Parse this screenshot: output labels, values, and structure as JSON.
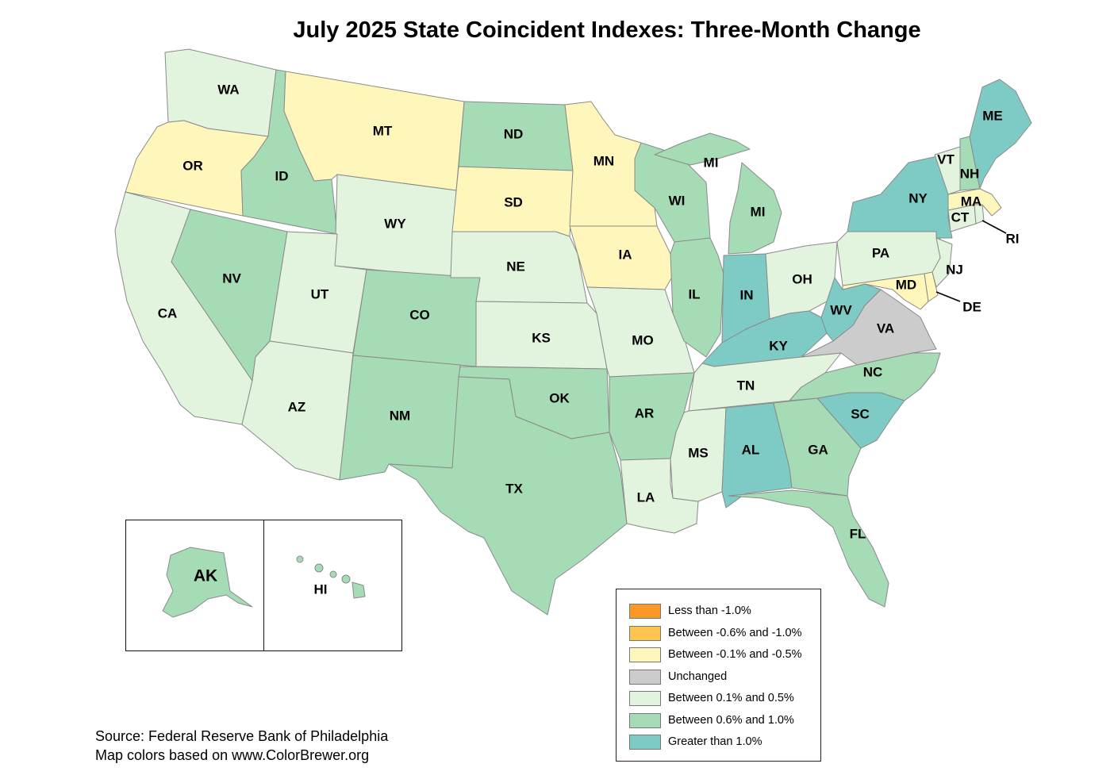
{
  "title": "July 2025 State Coincident Indexes: Three-Month Change",
  "source": {
    "line1": "Source: Federal Reserve Bank of Philadelphia",
    "line2": "Map colors based on www.ColorBrewer.org"
  },
  "legend": [
    {
      "label": "Less than -1.0%",
      "color": "#fc9828"
    },
    {
      "label": "Between -0.6% and -1.0%",
      "color": "#fdc44e"
    },
    {
      "label": "Between -0.1% and -0.5%",
      "color": "#fff6bb"
    },
    {
      "label": "Unchanged",
      "color": "#cccccc"
    },
    {
      "label": "Between 0.1% and 0.5%",
      "color": "#e2f3de"
    },
    {
      "label": "Between 0.6% and 1.0%",
      "color": "#a6dcb5"
    },
    {
      "label": "Greater than 1.0%",
      "color": "#7ecbc5"
    }
  ],
  "states": {
    "WA": {
      "label": "WA",
      "category": 4
    },
    "OR": {
      "label": "OR",
      "category": 2
    },
    "CA": {
      "label": "CA",
      "category": 4
    },
    "ID": {
      "label": "ID",
      "category": 5
    },
    "NV": {
      "label": "NV",
      "category": 5
    },
    "MT": {
      "label": "MT",
      "category": 2
    },
    "WY": {
      "label": "WY",
      "category": 4
    },
    "UT": {
      "label": "UT",
      "category": 4
    },
    "AZ": {
      "label": "AZ",
      "category": 4
    },
    "CO": {
      "label": "CO",
      "category": 5
    },
    "NM": {
      "label": "NM",
      "category": 5
    },
    "ND": {
      "label": "ND",
      "category": 5
    },
    "SD": {
      "label": "SD",
      "category": 2
    },
    "NE": {
      "label": "NE",
      "category": 4
    },
    "KS": {
      "label": "KS",
      "category": 4
    },
    "OK": {
      "label": "OK",
      "category": 5
    },
    "TX": {
      "label": "TX",
      "category": 5
    },
    "MN": {
      "label": "MN",
      "category": 2
    },
    "IA": {
      "label": "IA",
      "category": 2
    },
    "MO": {
      "label": "MO",
      "category": 4
    },
    "AR": {
      "label": "AR",
      "category": 5
    },
    "LA": {
      "label": "LA",
      "category": 4
    },
    "WI": {
      "label": "WI",
      "category": 5
    },
    "IL": {
      "label": "IL",
      "category": 5
    },
    "MI": {
      "label": "MI",
      "category": 5
    },
    "MI_UP": {
      "label": "MI",
      "category": 5
    },
    "IN": {
      "label": "IN",
      "category": 6
    },
    "OH": {
      "label": "OH",
      "category": 4
    },
    "KY": {
      "label": "KY",
      "category": 6
    },
    "TN": {
      "label": "TN",
      "category": 4
    },
    "MS": {
      "label": "MS",
      "category": 4
    },
    "AL": {
      "label": "AL",
      "category": 6
    },
    "GA": {
      "label": "GA",
      "category": 5
    },
    "FL": {
      "label": "FL",
      "category": 5
    },
    "SC": {
      "label": "SC",
      "category": 6
    },
    "NC": {
      "label": "NC",
      "category": 5
    },
    "VA": {
      "label": "VA",
      "category": 3
    },
    "WV": {
      "label": "WV",
      "category": 6
    },
    "PA": {
      "label": "PA",
      "category": 4
    },
    "NY": {
      "label": "NY",
      "category": 6
    },
    "NJ": {
      "label": "NJ",
      "category": 4
    },
    "DE": {
      "label": "DE",
      "category": 2
    },
    "MD": {
      "label": "MD",
      "category": 2
    },
    "CT": {
      "label": "CT",
      "category": 4
    },
    "RI": {
      "label": "RI",
      "category": 4
    },
    "MA": {
      "label": "MA",
      "category": 2
    },
    "VT": {
      "label": "VT",
      "category": 4
    },
    "NH": {
      "label": "NH",
      "category": 5
    },
    "ME": {
      "label": "ME",
      "category": 6
    },
    "AK": {
      "label": "AK",
      "category": 5
    },
    "HI": {
      "label": "HI",
      "category": 5
    }
  }
}
